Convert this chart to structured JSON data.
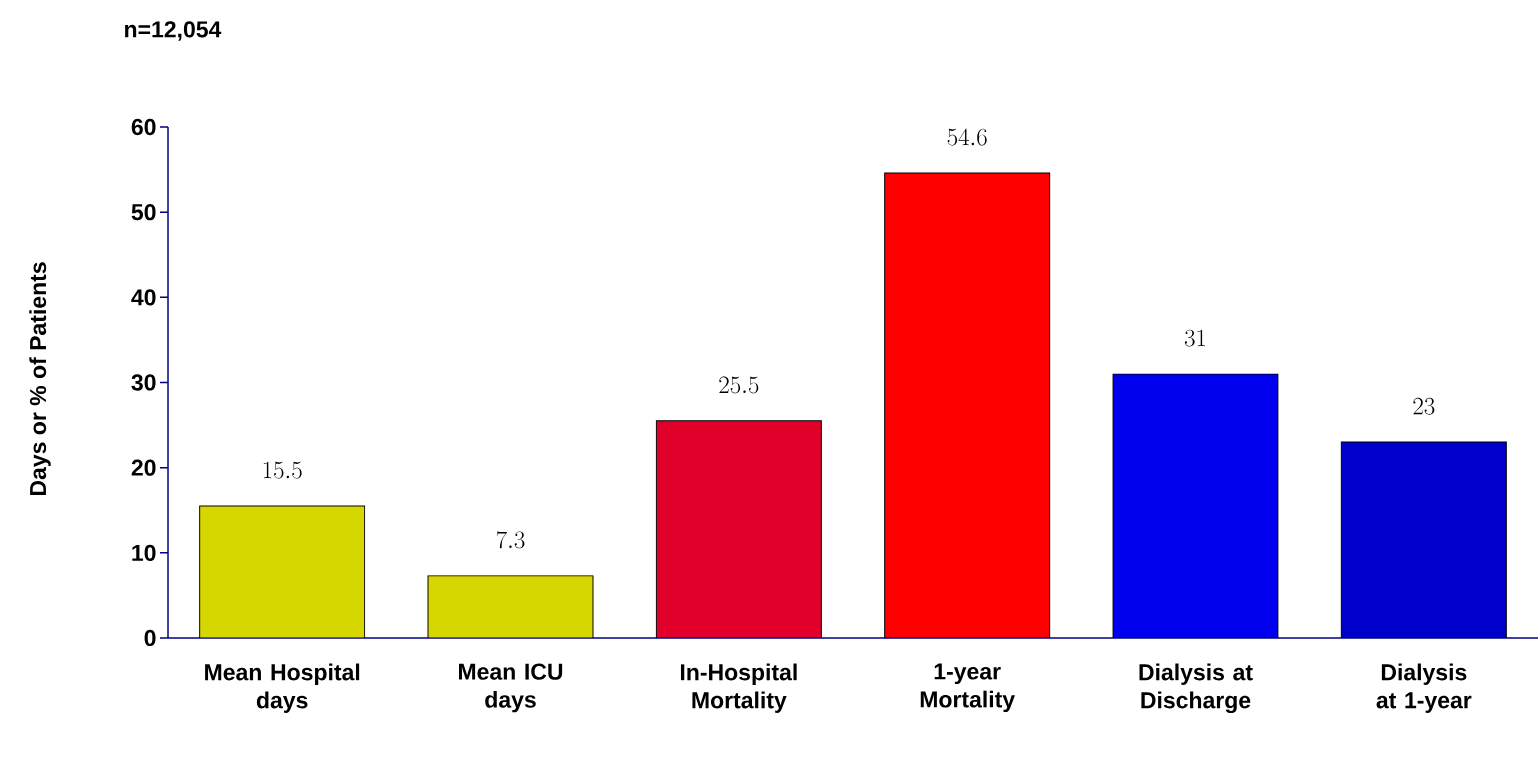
{
  "chart_data": {
    "type": "bar",
    "annotations": [
      "n=12,054"
    ],
    "ylabel": "Days or % of Patients",
    "categories": [
      "Mean Hospital days",
      "Mean ICU days",
      "In-Hospital Mortality",
      "1-year Mortality",
      "Dialysis at Discharge",
      "Dialysis at 1-year"
    ],
    "values": [
      15.5,
      7.3,
      25.5,
      54.6,
      31,
      23
    ],
    "colors": [
      "#d6d600",
      "#d6d600",
      "#e0002a",
      "#ff0000",
      "#0000ee",
      "#0000cc"
    ],
    "ylim": [
      0,
      60
    ],
    "yticks": [
      0,
      10,
      20,
      30,
      40,
      50,
      60
    ],
    "data_labels": true,
    "grid": false
  }
}
